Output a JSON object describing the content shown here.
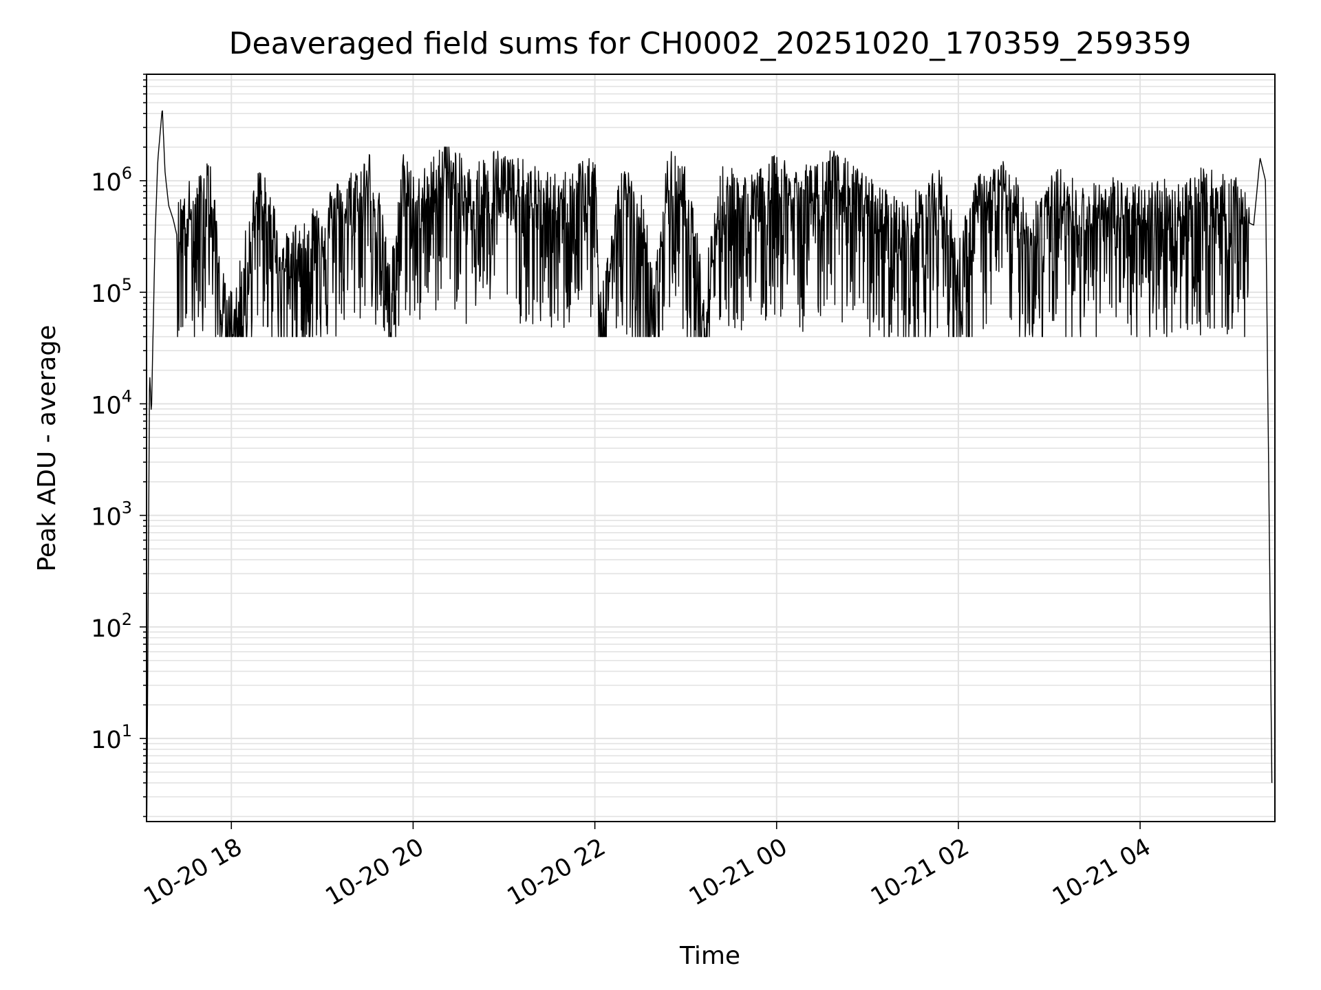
{
  "chart_data": {
    "type": "line",
    "title": "Deaveraged field sums for CH0002_20251020_170359_259359",
    "xlabel": "Time",
    "ylabel": "Peak ADU - average",
    "yscale": "log",
    "ylim": [
      1.8,
      9000000
    ],
    "xlim": [
      "2025-10-20 17:04",
      "2025-10-21 05:29"
    ],
    "grid": true,
    "x_ticks": [
      "10-20 18",
      "10-20 20",
      "10-20 22",
      "10-21 00",
      "10-21 02",
      "10-21 04"
    ],
    "x_tick_hours": [
      18,
      20,
      22,
      24,
      26,
      28
    ],
    "y_ticks": [
      {
        "base": "10",
        "exp": "1",
        "value": 10
      },
      {
        "base": "10",
        "exp": "2",
        "value": 100
      },
      {
        "base": "10",
        "exp": "3",
        "value": 1000
      },
      {
        "base": "10",
        "exp": "4",
        "value": 10000
      },
      {
        "base": "10",
        "exp": "5",
        "value": 100000
      },
      {
        "base": "10",
        "exp": "6",
        "value": 1000000
      }
    ],
    "series": [
      {
        "name": "field sums",
        "color": "#000000",
        "x_hours": [
          17.07,
          17.1,
          17.12,
          17.16,
          17.19,
          17.24,
          17.27,
          17.31,
          17.36,
          17.41,
          17.5,
          17.6,
          17.75,
          17.9,
          17.95,
          18.05,
          18.3,
          18.6,
          18.9,
          19.3,
          19.55,
          19.75,
          19.9,
          20.05,
          20.2,
          20.35,
          20.6,
          20.9,
          21.2,
          21.6,
          22.0,
          22.05,
          22.3,
          22.55,
          22.65,
          22.8,
          23.0,
          23.2,
          23.4,
          23.7,
          24.0,
          24.3,
          24.6,
          25.0,
          25.4,
          25.8,
          26.0,
          26.2,
          26.5,
          26.8,
          27.1,
          27.4,
          27.7,
          28.0,
          28.2,
          28.4,
          28.7,
          29.0,
          29.25,
          29.32,
          29.38,
          29.42,
          29.45
        ],
        "y_values": [
          2.0,
          20000,
          8000,
          300000,
          1500000,
          4500000,
          1200000,
          600000,
          450000,
          300000,
          500000,
          400000,
          900000,
          80000,
          45000,
          55000,
          700000,
          150000,
          300000,
          550000,
          900000,
          80000,
          900000,
          500000,
          700000,
          1300000,
          600000,
          900000,
          700000,
          500000,
          900000,
          45000,
          700000,
          300000,
          55000,
          900000,
          600000,
          70000,
          700000,
          500000,
          800000,
          600000,
          900000,
          500000,
          300000,
          600000,
          150000,
          500000,
          700000,
          300000,
          600000,
          400000,
          500000,
          400000,
          500000,
          450000,
          600000,
          500000,
          400000,
          1600000,
          1000000,
          1000,
          4.0
        ]
      }
    ]
  }
}
